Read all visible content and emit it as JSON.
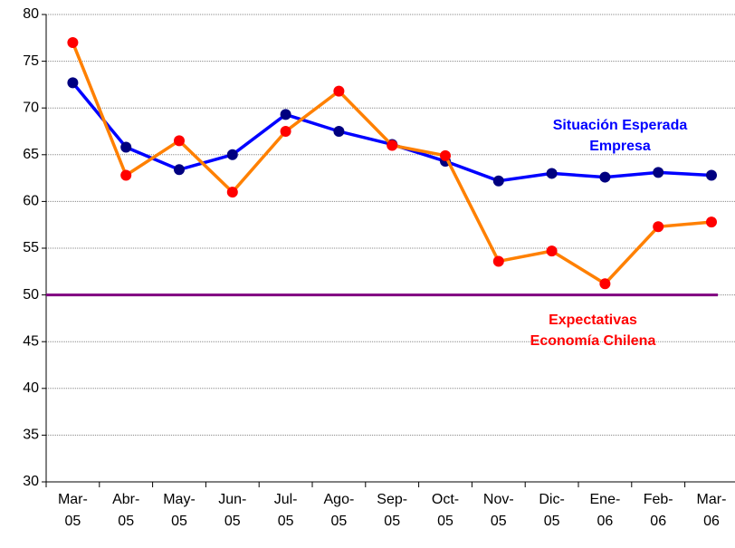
{
  "chart_data": {
    "type": "line",
    "categories": [
      "Mar-05",
      "Abr-05",
      "May-05",
      "Jun-05",
      "Jul-05",
      "Ago-05",
      "Sep-05",
      "Oct-05",
      "Nov-05",
      "Dic-05",
      "Ene-06",
      "Feb-06",
      "Mar-06"
    ],
    "series": [
      {
        "name": "Situación Esperada\nEmpresa",
        "color": "#0000ff",
        "marker_color": "#000080",
        "values": [
          72.7,
          65.8,
          63.4,
          65.0,
          69.3,
          67.5,
          66.1,
          64.3,
          62.2,
          63.0,
          62.6,
          63.1,
          62.8
        ]
      },
      {
        "name": "Expectativas\nEconomía Chilena",
        "color": "#ff8000",
        "marker_color": "#ff0000",
        "values": [
          77.0,
          62.8,
          66.5,
          61.0,
          67.5,
          71.8,
          66.0,
          64.9,
          53.6,
          54.7,
          51.2,
          57.3,
          57.8
        ]
      }
    ],
    "reference_line": {
      "value": 50,
      "color": "#800080"
    },
    "ylim": [
      30,
      80
    ],
    "yticks": [
      30,
      35,
      40,
      45,
      50,
      55,
      60,
      65,
      70,
      75,
      80
    ],
    "grid": true
  }
}
